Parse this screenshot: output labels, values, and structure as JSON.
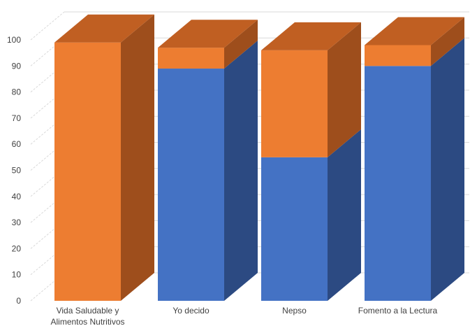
{
  "chart_data": {
    "type": "bar",
    "stacked": true,
    "three_d": true,
    "categories": [
      [
        "Vida Saludable y",
        "Alimentos Nutritivos"
      ],
      [
        "Yo decido"
      ],
      [
        "Nepso"
      ],
      [
        "Fomento a la Lectura"
      ]
    ],
    "series": [
      {
        "values": [
          0,
          89,
          55,
          90
        ],
        "color": "#4472C4",
        "side_color": "#2C4A82",
        "top_color": "#3A63AE"
      },
      {
        "values": [
          99,
          8,
          41,
          8
        ],
        "color": "#ED7D31",
        "side_color": "#9E4E1C",
        "top_color": "#C05F22"
      }
    ],
    "ylim": [
      0,
      100
    ],
    "yticks": [
      "0",
      "10",
      "20",
      "30",
      "40",
      "50",
      "60",
      "70",
      "80",
      "90",
      "100"
    ],
    "grid": true,
    "legend": "none",
    "title": "",
    "xlabel": "",
    "ylabel": ""
  }
}
